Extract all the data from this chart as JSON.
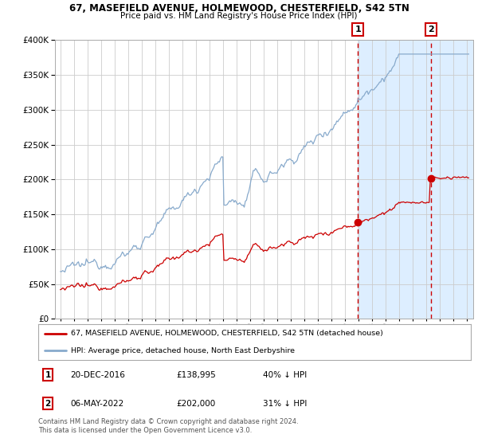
{
  "title1": "67, MASEFIELD AVENUE, HOLMEWOOD, CHESTERFIELD, S42 5TN",
  "title2": "Price paid vs. HM Land Registry's House Price Index (HPI)",
  "legend_red": "67, MASEFIELD AVENUE, HOLMEWOOD, CHESTERFIELD, S42 5TN (detached house)",
  "legend_blue": "HPI: Average price, detached house, North East Derbyshire",
  "annotation1_date": "20-DEC-2016",
  "annotation1_price": "£138,995",
  "annotation1_hpi": "40% ↓ HPI",
  "annotation2_date": "06-MAY-2022",
  "annotation2_price": "£202,000",
  "annotation2_hpi": "31% ↓ HPI",
  "footnote": "Contains HM Land Registry data © Crown copyright and database right 2024.\nThis data is licensed under the Open Government Licence v3.0.",
  "red_color": "#cc0000",
  "blue_color": "#88aacc",
  "highlight_bg": "#ddeeff",
  "annotation_box_color": "#cc0000",
  "vline_color": "#cc0000",
  "grid_color": "#cccccc",
  "ylim": [
    0,
    400000
  ],
  "yticks": [
    0,
    50000,
    100000,
    150000,
    200000,
    250000,
    300000,
    350000,
    400000
  ],
  "purchase1_date_num": 2016.97,
  "purchase1_value": 138995,
  "purchase2_date_num": 2022.37,
  "purchase2_value": 202000,
  "xlim_left": 1994.6,
  "xlim_right": 2025.5
}
